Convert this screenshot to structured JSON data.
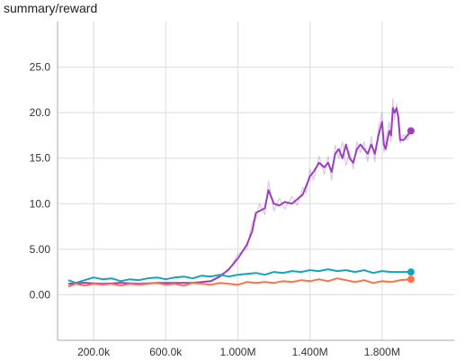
{
  "chart_data": {
    "type": "line",
    "title": "summary/reward",
    "xlabel": "",
    "ylabel": "",
    "xlim": [
      0,
      2200000
    ],
    "ylim": [
      -5,
      30
    ],
    "grid": true,
    "x_ticks": [
      {
        "value": 200000,
        "label": "200.0k"
      },
      {
        "value": 600000,
        "label": "600.0k"
      },
      {
        "value": 1000000,
        "label": "1.000M"
      },
      {
        "value": 1400000,
        "label": "1.400M"
      },
      {
        "value": 1800000,
        "label": "1.800M"
      }
    ],
    "y_ticks": [
      {
        "value": 0,
        "label": "0.00"
      },
      {
        "value": 5,
        "label": "5.00"
      },
      {
        "value": 10,
        "label": "10.0"
      },
      {
        "value": 15,
        "label": "15.0"
      },
      {
        "value": 20,
        "label": "20.0"
      },
      {
        "value": 25,
        "label": "25.0"
      }
    ],
    "series": [
      {
        "color": "#9c3fbf",
        "smoothed": [
          [
            60000,
            1.2
          ],
          [
            150000,
            1.3
          ],
          [
            250000,
            1.2
          ],
          [
            350000,
            1.3
          ],
          [
            450000,
            1.2
          ],
          [
            550000,
            1.3
          ],
          [
            650000,
            1.3
          ],
          [
            750000,
            1.3
          ],
          [
            850000,
            1.5
          ],
          [
            900000,
            2.0
          ],
          [
            950000,
            2.8
          ],
          [
            1000000,
            4.0
          ],
          [
            1050000,
            5.5
          ],
          [
            1080000,
            7.0
          ],
          [
            1100000,
            9.0
          ],
          [
            1130000,
            9.3
          ],
          [
            1150000,
            9.5
          ],
          [
            1170000,
            11.5
          ],
          [
            1200000,
            10.0
          ],
          [
            1230000,
            9.8
          ],
          [
            1260000,
            10.2
          ],
          [
            1300000,
            10.0
          ],
          [
            1330000,
            10.5
          ],
          [
            1360000,
            11.0
          ],
          [
            1380000,
            12.0
          ],
          [
            1400000,
            13.0
          ],
          [
            1420000,
            13.5
          ],
          [
            1450000,
            14.5
          ],
          [
            1480000,
            14.0
          ],
          [
            1500000,
            14.5
          ],
          [
            1520000,
            13.5
          ],
          [
            1540000,
            15.5
          ],
          [
            1560000,
            16.0
          ],
          [
            1580000,
            15.0
          ],
          [
            1600000,
            16.5
          ],
          [
            1620000,
            15.0
          ],
          [
            1640000,
            14.5
          ],
          [
            1660000,
            16.0
          ],
          [
            1680000,
            16.5
          ],
          [
            1700000,
            16.0
          ],
          [
            1720000,
            15.5
          ],
          [
            1740000,
            16.5
          ],
          [
            1760000,
            15.5
          ],
          [
            1780000,
            17.5
          ],
          [
            1800000,
            19.0
          ],
          [
            1810000,
            16.5
          ],
          [
            1820000,
            16.0
          ],
          [
            1840000,
            18.0
          ],
          [
            1850000,
            17.5
          ],
          [
            1860000,
            20.5
          ],
          [
            1870000,
            20.0
          ],
          [
            1880000,
            20.5
          ],
          [
            1890000,
            19.5
          ],
          [
            1900000,
            17.0
          ],
          [
            1920000,
            17.0
          ],
          [
            1940000,
            17.5
          ],
          [
            1960000,
            18.0
          ]
        ],
        "raw": [
          [
            60000,
            1.1
          ],
          [
            150000,
            1.4
          ],
          [
            250000,
            1.1
          ],
          [
            350000,
            1.4
          ],
          [
            450000,
            1.1
          ],
          [
            550000,
            1.4
          ],
          [
            650000,
            1.2
          ],
          [
            750000,
            1.4
          ],
          [
            850000,
            1.4
          ],
          [
            900000,
            2.2
          ],
          [
            950000,
            2.6
          ],
          [
            1000000,
            4.5
          ],
          [
            1050000,
            5.0
          ],
          [
            1080000,
            8.0
          ],
          [
            1100000,
            8.5
          ],
          [
            1120000,
            10.0
          ],
          [
            1150000,
            8.8
          ],
          [
            1170000,
            12.5
          ],
          [
            1200000,
            9.2
          ],
          [
            1230000,
            10.6
          ],
          [
            1260000,
            9.4
          ],
          [
            1300000,
            10.8
          ],
          [
            1330000,
            9.8
          ],
          [
            1360000,
            11.8
          ],
          [
            1380000,
            11.2
          ],
          [
            1400000,
            13.8
          ],
          [
            1420000,
            12.6
          ],
          [
            1450000,
            15.2
          ],
          [
            1480000,
            13.2
          ],
          [
            1500000,
            15.2
          ],
          [
            1520000,
            12.6
          ],
          [
            1540000,
            16.4
          ],
          [
            1560000,
            15.0
          ],
          [
            1580000,
            16.8
          ],
          [
            1600000,
            14.2
          ],
          [
            1620000,
            15.8
          ],
          [
            1640000,
            13.8
          ],
          [
            1660000,
            16.8
          ],
          [
            1680000,
            15.6
          ],
          [
            1700000,
            16.8
          ],
          [
            1720000,
            14.6
          ],
          [
            1740000,
            17.4
          ],
          [
            1760000,
            14.6
          ],
          [
            1780000,
            18.4
          ],
          [
            1800000,
            20.0
          ],
          [
            1810000,
            15.6
          ],
          [
            1820000,
            16.8
          ],
          [
            1840000,
            19.0
          ],
          [
            1850000,
            16.8
          ],
          [
            1860000,
            21.5
          ],
          [
            1870000,
            19.2
          ],
          [
            1880000,
            21.0
          ],
          [
            1890000,
            18.5
          ],
          [
            1900000,
            16.6
          ],
          [
            1920000,
            17.6
          ],
          [
            1940000,
            17.0
          ],
          [
            1960000,
            18.0
          ]
        ],
        "end_marker": [
          1960000,
          18.0
        ]
      },
      {
        "color": "#12a5b8",
        "smoothed": [
          [
            60000,
            1.6
          ],
          [
            100000,
            1.3
          ],
          [
            150000,
            1.6
          ],
          [
            200000,
            1.9
          ],
          [
            250000,
            1.7
          ],
          [
            300000,
            1.8
          ],
          [
            350000,
            1.5
          ],
          [
            400000,
            1.7
          ],
          [
            450000,
            1.6
          ],
          [
            500000,
            1.8
          ],
          [
            550000,
            1.9
          ],
          [
            600000,
            1.7
          ],
          [
            650000,
            1.9
          ],
          [
            700000,
            2.0
          ],
          [
            750000,
            1.8
          ],
          [
            800000,
            2.1
          ],
          [
            850000,
            2.0
          ],
          [
            900000,
            2.2
          ],
          [
            950000,
            2.0
          ],
          [
            1000000,
            2.2
          ],
          [
            1050000,
            2.3
          ],
          [
            1100000,
            2.4
          ],
          [
            1150000,
            2.2
          ],
          [
            1200000,
            2.5
          ],
          [
            1250000,
            2.4
          ],
          [
            1300000,
            2.6
          ],
          [
            1350000,
            2.5
          ],
          [
            1400000,
            2.7
          ],
          [
            1450000,
            2.6
          ],
          [
            1500000,
            2.8
          ],
          [
            1550000,
            2.6
          ],
          [
            1600000,
            2.7
          ],
          [
            1650000,
            2.5
          ],
          [
            1700000,
            2.7
          ],
          [
            1750000,
            2.4
          ],
          [
            1800000,
            2.6
          ],
          [
            1850000,
            2.5
          ],
          [
            1900000,
            2.5
          ],
          [
            1960000,
            2.5
          ]
        ],
        "end_marker": [
          1960000,
          2.5
        ]
      },
      {
        "color": "#ff7043",
        "smoothed": [
          [
            60000,
            0.9
          ],
          [
            100000,
            1.2
          ],
          [
            150000,
            1.0
          ],
          [
            200000,
            1.2
          ],
          [
            250000,
            1.1
          ],
          [
            300000,
            1.2
          ],
          [
            350000,
            1.0
          ],
          [
            400000,
            1.2
          ],
          [
            450000,
            1.1
          ],
          [
            500000,
            1.2
          ],
          [
            550000,
            1.3
          ],
          [
            600000,
            1.1
          ],
          [
            650000,
            1.2
          ],
          [
            700000,
            1.0
          ],
          [
            750000,
            1.3
          ],
          [
            800000,
            1.2
          ],
          [
            850000,
            1.1
          ],
          [
            900000,
            1.3
          ],
          [
            950000,
            1.2
          ],
          [
            1000000,
            1.1
          ],
          [
            1050000,
            1.4
          ],
          [
            1100000,
            1.3
          ],
          [
            1150000,
            1.4
          ],
          [
            1200000,
            1.3
          ],
          [
            1250000,
            1.5
          ],
          [
            1300000,
            1.4
          ],
          [
            1350000,
            1.6
          ],
          [
            1400000,
            1.5
          ],
          [
            1450000,
            1.7
          ],
          [
            1500000,
            1.5
          ],
          [
            1550000,
            1.8
          ],
          [
            1600000,
            1.6
          ],
          [
            1650000,
            1.4
          ],
          [
            1700000,
            1.6
          ],
          [
            1750000,
            1.3
          ],
          [
            1800000,
            1.5
          ],
          [
            1850000,
            1.4
          ],
          [
            1900000,
            1.6
          ],
          [
            1960000,
            1.7
          ]
        ],
        "end_marker": [
          1960000,
          1.7
        ]
      }
    ]
  }
}
